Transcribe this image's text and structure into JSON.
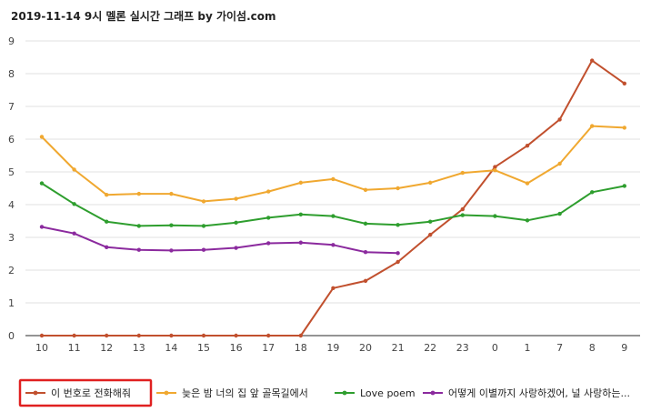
{
  "chart_data": {
    "type": "line",
    "title": "2019-11-14 9시 멜론 실시간 그래프 by 가이섬.com",
    "xlabel": "",
    "ylabel": "",
    "categories": [
      "10",
      "11",
      "12",
      "13",
      "14",
      "15",
      "16",
      "17",
      "18",
      "19",
      "20",
      "21",
      "22",
      "23",
      "0",
      "1",
      "7",
      "8",
      "9"
    ],
    "ylim": [
      0,
      9
    ],
    "yticks": [
      0,
      1,
      2,
      3,
      4,
      5,
      6,
      7,
      8,
      9
    ],
    "grid": true,
    "legend_position": "bottom",
    "series": [
      {
        "name": "이 번호로 전화해줘",
        "color": "#c1502e",
        "values": [
          0,
          0,
          0,
          0,
          0,
          0,
          0,
          0,
          0,
          1.45,
          1.67,
          2.25,
          3.08,
          3.86,
          5.15,
          5.8,
          6.6,
          8.4,
          7.7
        ]
      },
      {
        "name": "늦은 밤 너의 집 앞 골목길에서",
        "color": "#f0a830",
        "values": [
          6.07,
          5.07,
          4.3,
          4.33,
          4.33,
          4.1,
          4.18,
          4.4,
          4.67,
          4.78,
          4.45,
          4.5,
          4.67,
          4.97,
          5.05,
          4.65,
          5.25,
          6.4,
          6.35
        ]
      },
      {
        "name": "Love poem",
        "color": "#2e9e2e",
        "values": [
          4.65,
          4.02,
          3.48,
          3.35,
          3.37,
          3.35,
          3.45,
          3.6,
          3.7,
          3.65,
          3.42,
          3.38,
          3.48,
          3.68,
          3.65,
          3.52,
          3.72,
          4.38,
          4.57
        ]
      },
      {
        "name": "어떻게 이별까지 사랑하겠어, 널 사랑하는...",
        "color": "#8b2a9e",
        "values": [
          3.32,
          3.12,
          2.7,
          2.62,
          2.6,
          2.62,
          2.68,
          2.82,
          2.84,
          2.77,
          2.55,
          2.52,
          null,
          null,
          null,
          null,
          null,
          null,
          null
        ]
      }
    ],
    "highlighted_legend_entry": "이 번호로 전화해줘",
    "highlight_color": "#e02020"
  }
}
